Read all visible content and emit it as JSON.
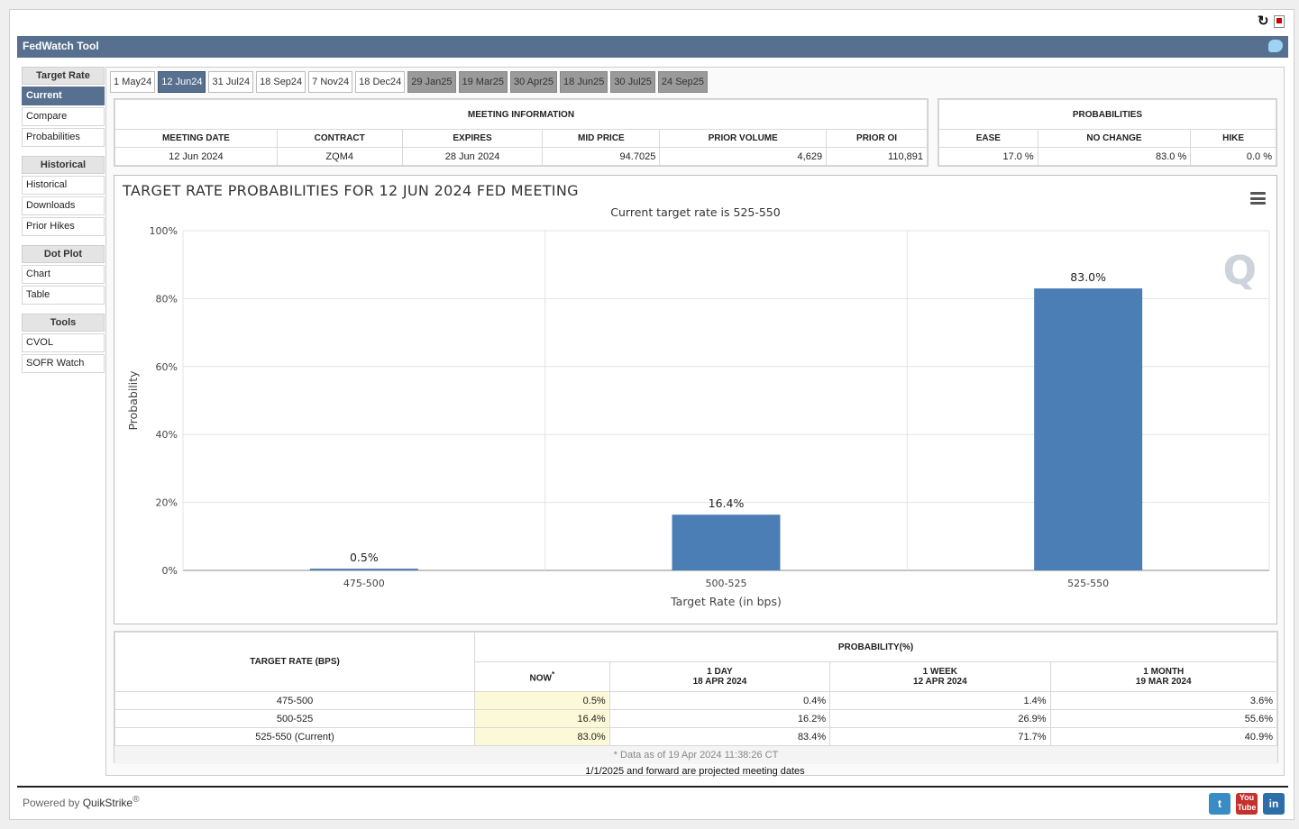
{
  "app": {
    "title": "FedWatch Tool",
    "powered_by": "Powered by",
    "brand": "QuikStrike",
    "reg": "®"
  },
  "sidebar": [
    {
      "header": "Target Rate",
      "items": [
        {
          "label": "Current",
          "active": true
        },
        {
          "label": "Compare"
        },
        {
          "label": "Probabilities"
        }
      ]
    },
    {
      "header": "Historical",
      "items": [
        {
          "label": "Historical"
        },
        {
          "label": "Downloads"
        },
        {
          "label": "Prior Hikes"
        }
      ]
    },
    {
      "header": "Dot Plot",
      "items": [
        {
          "label": "Chart"
        },
        {
          "label": "Table"
        }
      ]
    },
    {
      "header": "Tools",
      "items": [
        {
          "label": "CVOL"
        },
        {
          "label": "SOFR Watch"
        }
      ]
    }
  ],
  "tabs": [
    {
      "label": "1 May24",
      "state": "normal"
    },
    {
      "label": "12 Jun24",
      "state": "active"
    },
    {
      "label": "31 Jul24",
      "state": "normal"
    },
    {
      "label": "18 Sep24",
      "state": "normal"
    },
    {
      "label": "7 Nov24",
      "state": "normal"
    },
    {
      "label": "18 Dec24",
      "state": "normal"
    },
    {
      "label": "29 Jan25",
      "state": "future"
    },
    {
      "label": "19 Mar25",
      "state": "future"
    },
    {
      "label": "30 Apr25",
      "state": "future"
    },
    {
      "label": "18 Jun25",
      "state": "future"
    },
    {
      "label": "30 Jul25",
      "state": "future"
    },
    {
      "label": "24 Sep25",
      "state": "future"
    }
  ],
  "meeting_info": {
    "header": "MEETING INFORMATION",
    "columns": [
      "MEETING DATE",
      "CONTRACT",
      "EXPIRES",
      "MID PRICE",
      "PRIOR VOLUME",
      "PRIOR OI"
    ],
    "row": [
      "12 Jun 2024",
      "ZQM4",
      "28 Jun 2024",
      "94.7025",
      "4,629",
      "110,891"
    ]
  },
  "probabilities": {
    "header": "PROBABILITIES",
    "columns": [
      "EASE",
      "NO CHANGE",
      "HIKE"
    ],
    "row": [
      "17.0 %",
      "83.0 %",
      "0.0 %"
    ]
  },
  "chart_data": {
    "type": "bar",
    "title": "TARGET RATE PROBABILITIES FOR 12 JUN 2024 FED MEETING",
    "subtitle": "Current target rate is 525-550",
    "xlabel": "Target Rate (in bps)",
    "ylabel": "Probability",
    "categories": [
      "475-500",
      "500-525",
      "525-550"
    ],
    "values": [
      0.5,
      16.4,
      83.0
    ],
    "value_labels": [
      "0.5%",
      "16.4%",
      "83.0%"
    ],
    "ylim": [
      0,
      100
    ],
    "yticks": [
      "0%",
      "20%",
      "40%",
      "60%",
      "80%",
      "100%"
    ],
    "grid": true,
    "bar_color": "#4a7eb5"
  },
  "prob_table": {
    "rate_header": "TARGET RATE (BPS)",
    "group_header": "PROBABILITY(%)",
    "now_label": "NOW",
    "now_mark": "*",
    "cols": [
      {
        "label": "1 DAY",
        "date": "18 APR 2024"
      },
      {
        "label": "1 WEEK",
        "date": "12 APR 2024"
      },
      {
        "label": "1 MONTH",
        "date": "19 MAR 2024"
      }
    ],
    "rows": [
      {
        "rate": "475-500",
        "now": "0.5%",
        "day": "0.4%",
        "week": "1.4%",
        "month": "3.6%"
      },
      {
        "rate": "500-525",
        "now": "16.4%",
        "day": "16.2%",
        "week": "26.9%",
        "month": "55.6%"
      },
      {
        "rate": "525-550 (Current)",
        "now": "83.0%",
        "day": "83.4%",
        "week": "71.7%",
        "month": "40.9%"
      }
    ],
    "note": "* Data as of 19 Apr 2024 11:38:26 CT"
  },
  "footnote": "1/1/2025 and forward are projected meeting dates",
  "social": {
    "twitter": {
      "label": "t",
      "color": "#3a8dc4"
    },
    "youtube": {
      "label": "You",
      "label2": "Tube",
      "color": "#c4302b"
    },
    "linkedin": {
      "label": "in",
      "color": "#2b6ea8"
    }
  }
}
